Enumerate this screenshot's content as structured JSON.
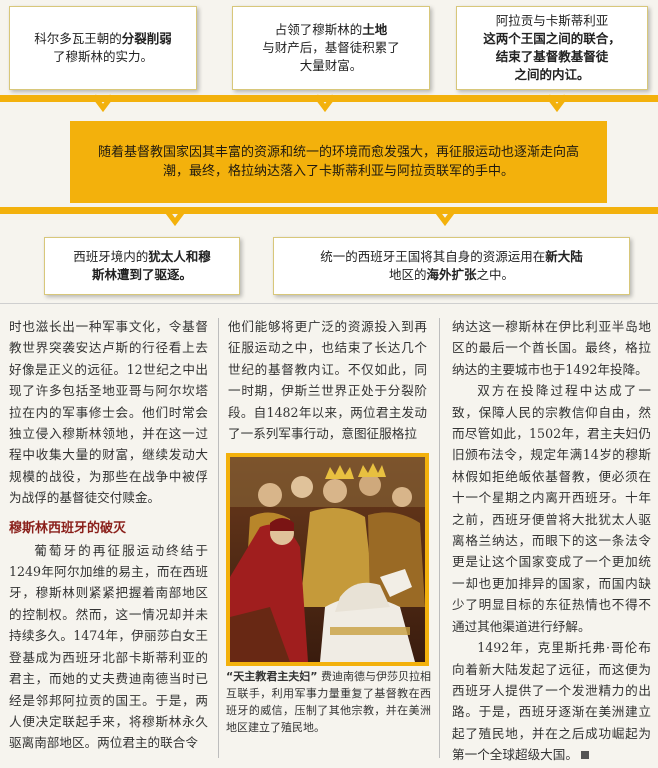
{
  "flow": {
    "cause_1": {
      "text_a": "科尔多瓦王朝的",
      "text_b": "分裂削弱",
      "text_c": "了穆斯林的实力。"
    },
    "cause_2": {
      "text_a": "占领了穆斯林的",
      "text_b": "土地",
      "text_c": "与财产后，基督徒积累了",
      "text_d": "大量财富。"
    },
    "cause_3": {
      "text_a": "阿拉贡与卡斯蒂利亚",
      "text_b": "这两个王国之间的联合，",
      "text_c": "结束了基督教基督徒",
      "text_d": "之间的内讧。"
    },
    "central": "随着基督教国家因其丰富的资源和统一的环境而愈发强大，再征服运动也逐渐走向高潮，最终，格拉纳达落入了卡斯蒂利亚与阿拉贡联军的手中。",
    "effect_1": {
      "text_a": "西班牙境内的",
      "text_b": "犹太人和穆",
      "text_c": "斯林遭到了驱逐。"
    },
    "effect_2": {
      "text_a": "统一的西班牙王国将其自身的资源运用在",
      "text_b": "新大陆",
      "text_c": "地区的",
      "text_d": "海外扩张",
      "text_e": "之中。"
    }
  },
  "article": {
    "col1_p1": "时也滋长出一种军事文化，令基督教世界突袭安达卢斯的行径看上去好像是正义的远征。12世纪之中出现了许多包括圣地亚哥与阿尔坎塔拉在内的军事修士会。他们时常会独立侵入穆斯林领地，并在这一过程中收集大量的财富，继续发动大规模的战役，为那些在战争中被俘为战俘的基督徒交付赎金。",
    "heading": "穆斯林西班牙的破灭",
    "col1_p2": "葡萄牙的再征服运动终结于1249年阿尔加维的易主，而在西班牙，穆斯林则紧紧把握着南部地区的控制权。然而，这一情况却并未持续多久。1474年，伊丽莎白女王登基成为西班牙北部卡斯蒂利亚的君主，而她的丈夫费迪南德当时已经是邻邦阿拉贡的国王。于是，两人便决定联起手来，将穆斯林永久驱离南部地区。两位君主的联合令",
    "col2_p1": "他们能够将更广泛的资源投入到再征服运动之中，也结束了长达几个世纪的基督教内讧。不仅如此，同一时期，伊斯兰世界正处于分裂阶段。自1482年以来，两位君主发动了一系列军事行动，意图征服格拉",
    "caption_title": "“天主教君主夫妇”",
    "caption_body": "费迪南德与伊莎贝拉相互联手，利用军事力量重复了基督教在西班牙的威信，压制了其他宗教，并在美洲地区建立了殖民地。",
    "col3_p1": "纳达这一穆斯林在伊比利亚半岛地区的最后一个酋长国。最终，格拉纳达的主要城市也于1492年投降。",
    "col3_p2": "双方在投降过程中达成了一致，保障人民的宗教信仰自由，然而尽管如此，1502年，君主夫妇仍旧颁布法令，规定年满14岁的穆斯林假如拒绝皈依基督教，便必须在十一个星期之内离开西班牙。十年之前，西班牙便曾将大批犹太人驱离格兰纳达，而眼下的这一条法令更是让这个国家变成了一个更加统一却也更加排异的国家，而国内缺少了明显目标的东征热情也不得不通过其他渠道进行纾解。",
    "col3_p3": "1492年，克里斯托弗·哥伦布向着新大陆发起了远征，而这便为西班牙人提供了一个发泄精力的出路。于是，西班牙逐渐在美洲建立起了殖民地，并在之后成功崛起为第一个全球超级大国。"
  },
  "colors": {
    "accent": "#f3b10c",
    "heading": "#8a1f1a"
  },
  "icons": {
    "flow_arrow": "chevron-down-arrow",
    "end_mark": "square-end-mark"
  }
}
